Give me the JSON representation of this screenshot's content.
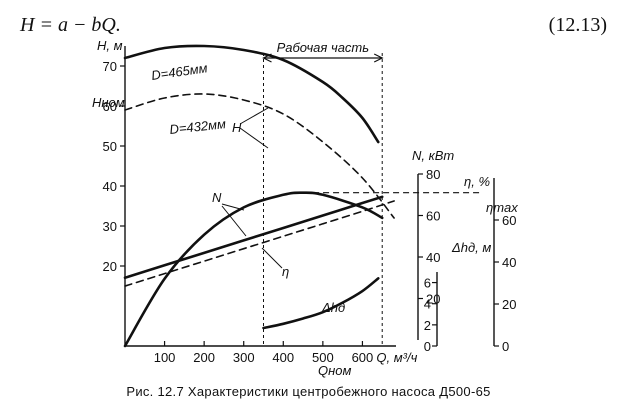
{
  "formula": {
    "text": "H = a − bQ.",
    "number": "(12.13)"
  },
  "caption": "Рис. 12.7  Характеристики центробежного насоса Д500-65",
  "chart_data": {
    "type": "line",
    "title": "",
    "xlabel": "Q, м³/ч",
    "x_ticks": [
      100,
      200,
      300,
      400,
      500,
      600
    ],
    "xlim": [
      0,
      700
    ],
    "axes": [
      {
        "id": "H",
        "label": "H, м",
        "ticks": [
          20,
          30,
          40,
          50,
          60,
          70
        ],
        "lim": [
          0,
          75
        ],
        "extra_labels": [
          "Hном"
        ]
      },
      {
        "id": "N",
        "label": "N, кВт",
        "ticks": [
          20,
          40,
          60,
          80
        ],
        "lim": [
          0,
          80
        ]
      },
      {
        "id": "eta",
        "label": "η, %",
        "ticks": [
          0,
          20,
          40,
          60
        ],
        "lim": [
          0,
          80
        ],
        "extra_labels": [
          "ηmax"
        ]
      },
      {
        "id": "dh",
        "label": "Δhд, м",
        "ticks": [
          0,
          2,
          4,
          6
        ],
        "lim": [
          0,
          7
        ]
      }
    ],
    "annotations": {
      "working_range": "Рабочая часть",
      "d465": "D=465мм",
      "d432": "D=432мм",
      "H": "H",
      "N": "N",
      "eta": "η",
      "dh": "Δhд",
      "q_nom": "Qном"
    },
    "series": [
      {
        "name": "H",
        "axis": "H",
        "style": "solid",
        "x": [
          0,
          100,
          200,
          300,
          400,
          500,
          550,
          600,
          640
        ],
        "y": [
          72,
          74.5,
          75,
          74,
          71.5,
          66,
          62,
          57,
          51
        ]
      },
      {
        "name": "H (D=432мм)",
        "axis": "H",
        "style": "dashed",
        "x": [
          0,
          100,
          200,
          300,
          400,
          500,
          600,
          680
        ],
        "y": [
          59,
          62,
          63,
          61.5,
          58,
          51,
          42,
          32
        ]
      },
      {
        "name": "N",
        "axis": "N",
        "style": "solid",
        "x": [
          0,
          100,
          200,
          300,
          400,
          500,
          600,
          650
        ],
        "y": [
          30,
          36,
          42,
          48,
          54,
          60,
          66,
          69
        ]
      },
      {
        "name": "N (D=432мм)",
        "axis": "N",
        "style": "dashed",
        "x": [
          0,
          100,
          200,
          300,
          400,
          500,
          600,
          680
        ],
        "y": [
          26,
          32,
          38,
          44,
          50,
          56,
          62,
          67
        ]
      },
      {
        "name": "η",
        "axis": "eta",
        "style": "solid",
        "x": [
          0,
          100,
          200,
          300,
          400,
          450,
          500,
          600,
          650
        ],
        "y": [
          0,
          32,
          53,
          66,
          72,
          73,
          72,
          66,
          61
        ]
      },
      {
        "name": "Δhд",
        "axis": "dh",
        "style": "solid",
        "x": [
          350,
          400,
          450,
          500,
          550,
          600,
          640
        ],
        "y": [
          1.7,
          2.1,
          2.6,
          3.2,
          4.1,
          5.2,
          6.4
        ]
      }
    ]
  }
}
